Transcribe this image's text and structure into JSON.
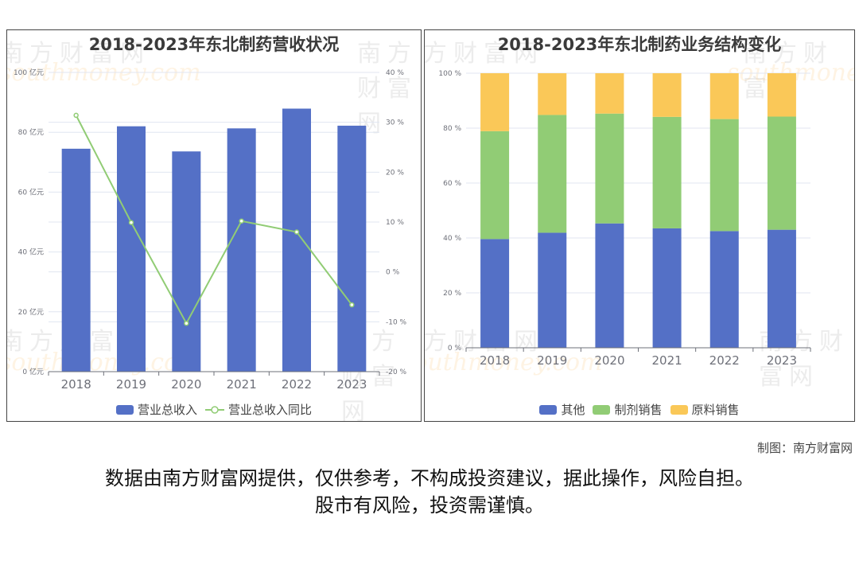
{
  "colors": {
    "blue": "#5470c6",
    "green": "#91cc75",
    "yellow": "#fac858",
    "grid": "#e0e6f1",
    "axis_text": "#6e7079"
  },
  "watermark": {
    "cn": "南方财富网",
    "en": "southmoney.com"
  },
  "left": {
    "title": "2018-2023年东北制药营收状况",
    "legend": [
      "营业总收入",
      "营业总收入同比"
    ]
  },
  "right": {
    "title": "2018-2023年东北制药业务结构变化",
    "legend": [
      "其他",
      "制剂销售",
      "原料销售"
    ]
  },
  "footer": {
    "credit": "制图：南方财富网",
    "line1": "数据由南方财富网提供，仅供参考，不构成投资建议，据此操作，风险自担。",
    "line2": "股市有风险，投资需谨慎。"
  },
  "chart_data": [
    {
      "type": "bar",
      "title": "2018-2023年东北制药营收状况",
      "categories": [
        "2018",
        "2019",
        "2020",
        "2021",
        "2022",
        "2023"
      ],
      "series": [
        {
          "name": "营业总收入",
          "type": "bar",
          "axis": "left",
          "unit": "亿元",
          "values": [
            74.5,
            82.0,
            73.6,
            81.3,
            87.9,
            82.2
          ]
        },
        {
          "name": "营业总收入同比",
          "type": "line",
          "axis": "right",
          "unit": "%",
          "values": [
            31.4,
            9.9,
            -10.3,
            10.2,
            8.0,
            -6.6
          ]
        }
      ],
      "y_left": {
        "ticks": [
          "0 亿元",
          "20 亿元",
          "40 亿元",
          "60 亿元",
          "80 亿元",
          "100 亿元"
        ],
        "range": [
          0,
          100
        ]
      },
      "y_right": {
        "ticks": [
          "-20 %",
          "-10 %",
          "0 %",
          "10 %",
          "20 %",
          "30 %",
          "40 %"
        ],
        "range": [
          -20,
          40
        ]
      },
      "grid": true,
      "legend_position": "bottom"
    },
    {
      "type": "bar",
      "stacked": true,
      "title": "2018-2023年东北制药业务结构变化",
      "categories": [
        "2018",
        "2019",
        "2020",
        "2021",
        "2022",
        "2023"
      ],
      "series": [
        {
          "name": "其他",
          "values": [
            39.6,
            41.9,
            45.3,
            43.5,
            42.5,
            43.0
          ]
        },
        {
          "name": "制剂销售",
          "values": [
            39.3,
            42.9,
            40.0,
            40.6,
            40.8,
            41.2
          ]
        },
        {
          "name": "原料销售",
          "values": [
            21.1,
            15.2,
            14.7,
            15.9,
            16.7,
            15.8
          ]
        }
      ],
      "y": {
        "ticks": [
          "0 %",
          "20 %",
          "40 %",
          "60 %",
          "80 %",
          "100 %"
        ],
        "range": [
          0,
          100
        ]
      },
      "grid": true,
      "legend_position": "bottom"
    }
  ]
}
